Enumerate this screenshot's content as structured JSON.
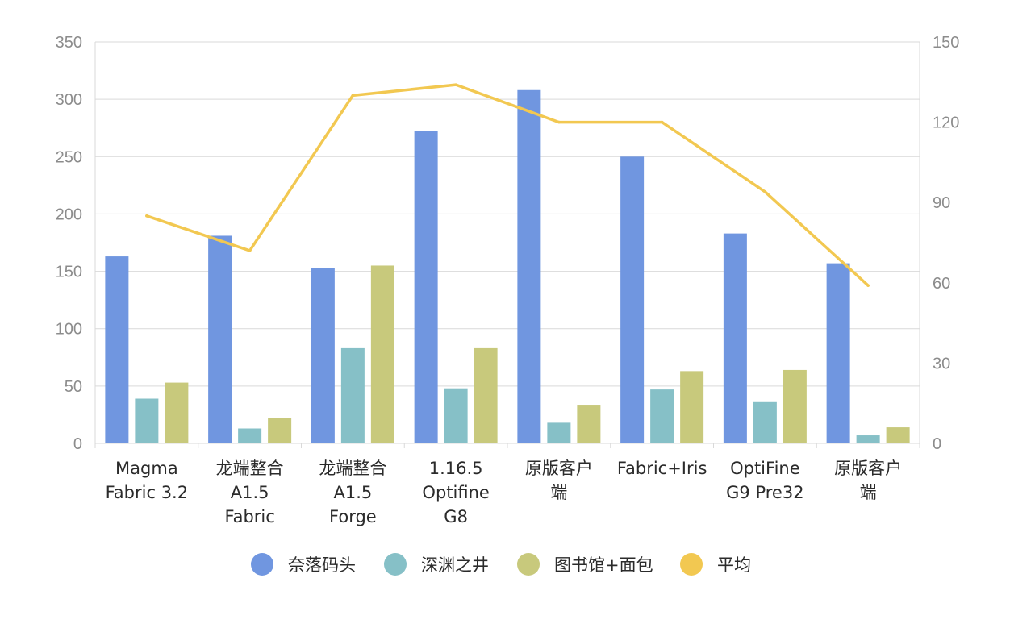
{
  "chart_data": {
    "type": "bar",
    "categories": [
      [
        "Magma",
        "Fabric 3.2"
      ],
      [
        "龙端整合",
        "A1.5",
        "Fabric"
      ],
      [
        "龙端整合",
        "A1.5",
        "Forge"
      ],
      [
        "1.16.5",
        "Optifine",
        "G8"
      ],
      [
        "原版客户",
        "端"
      ],
      [
        "Fabric+Iris"
      ],
      [
        "OptiFine",
        "G9 Pre32"
      ],
      [
        "原版客户",
        "端"
      ]
    ],
    "series": [
      {
        "name": "奈落码头",
        "type": "bar",
        "axis": "left",
        "color": "#7096e0",
        "values": [
          163,
          181,
          153,
          272,
          308,
          250,
          183,
          157
        ]
      },
      {
        "name": "深渊之井",
        "type": "bar",
        "axis": "left",
        "color": "#86c0c7",
        "values": [
          39,
          13,
          83,
          48,
          18,
          47,
          36,
          7
        ]
      },
      {
        "name": "图书馆+面包",
        "type": "bar",
        "axis": "left",
        "color": "#c8c97c",
        "values": [
          53,
          22,
          155,
          83,
          33,
          63,
          64,
          14
        ]
      },
      {
        "name": "平均",
        "type": "line",
        "axis": "right",
        "color": "#f2c851",
        "values": [
          85,
          72,
          130,
          134,
          120,
          120,
          94,
          59
        ]
      }
    ],
    "y_left": {
      "min": 0,
      "max": 350,
      "ticks": [
        "0",
        "50",
        "100",
        "150",
        "200",
        "250",
        "300",
        "350"
      ]
    },
    "y_right": {
      "min": 0,
      "max": 150,
      "ticks": [
        "0",
        "30",
        "60",
        "90",
        "120",
        "150"
      ]
    },
    "title": "",
    "xlabel": "",
    "ylabel": "",
    "grid": true,
    "legend": "bottom"
  }
}
